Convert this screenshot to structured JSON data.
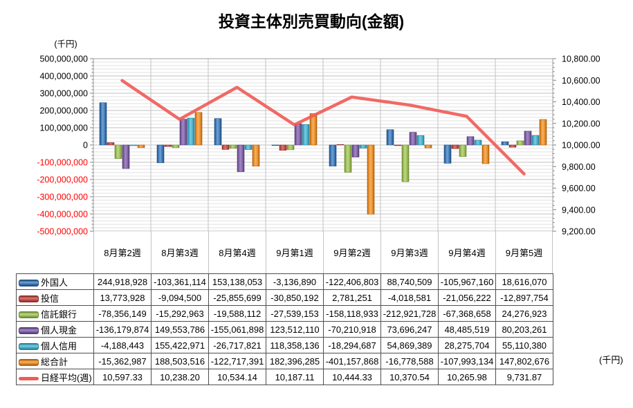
{
  "title": "投資主体別売買動向(金額)",
  "units": {
    "left_top": "(千円)",
    "right_bottom": "(千円)"
  },
  "chart_data": {
    "type": "bar+line-combo",
    "categories": [
      "8月第2週",
      "8月第3週",
      "8月第4週",
      "9月第1週",
      "9月第2週",
      "9月第3週",
      "9月第4週",
      "9月第5週"
    ],
    "series": [
      {
        "key": "foreigners",
        "name": "外国人",
        "type": "bar",
        "color": "#3C73B0",
        "light": "#6FA3D8",
        "dark": "#1E4E7E",
        "values": [
          244918928,
          -103361114,
          153138053,
          -3136890,
          -122406803,
          88740509,
          -105967160,
          18616070
        ]
      },
      {
        "key": "investment-trusts",
        "name": "投信",
        "type": "bar",
        "color": "#BE4B48",
        "light": "#DC7370",
        "dark": "#8A2E2C",
        "values": [
          13773928,
          -9094500,
          -25855699,
          -30850192,
          2781251,
          -4018581,
          -21056222,
          -12897754
        ]
      },
      {
        "key": "trust-banks",
        "name": "信託銀行",
        "type": "bar",
        "color": "#98B954",
        "light": "#C0D784",
        "dark": "#6B8A33",
        "values": [
          -78356149,
          -15292963,
          -19588112,
          -27539153,
          -158118933,
          -212921728,
          -67368658,
          24276923
        ]
      },
      {
        "key": "individual-cash",
        "name": "個人現金",
        "type": "bar",
        "color": "#7C60A0",
        "light": "#A488C8",
        "dark": "#543C75",
        "values": [
          -136179874,
          149553786,
          -155061898,
          123512110,
          -70210918,
          73696247,
          48485519,
          80203261
        ]
      },
      {
        "key": "individual-margin",
        "name": "個人信用",
        "type": "bar",
        "color": "#45AAC5",
        "light": "#76CEE4",
        "dark": "#2B7F96",
        "values": [
          -4188443,
          155422971,
          -26717821,
          118358136,
          -18294687,
          54869389,
          28275704,
          55110380
        ]
      },
      {
        "key": "grand-total",
        "name": "総合計",
        "type": "bar",
        "color": "#E78B28",
        "light": "#F7B160",
        "dark": "#AC5E08",
        "values": [
          -15362987,
          188503516,
          -122717391,
          182396285,
          -401157868,
          -16778588,
          -107993134,
          147802676
        ]
      },
      {
        "key": "nikkei-weekly",
        "name": "日経平均(週)",
        "type": "line",
        "color": "#F15A55",
        "light": "#F15A55",
        "dark": "#F15A55",
        "values": [
          10597.33,
          10238.2,
          10534.14,
          10187.11,
          10444.33,
          10370.54,
          10265.98,
          9731.87
        ]
      }
    ],
    "left_axis": {
      "min": -500000000,
      "max": 500000000,
      "major": 100000000,
      "minor": 20000000,
      "unit": "(千円)",
      "negative_label_color": "#FF0000"
    },
    "right_axis": {
      "min": 9200,
      "max": 10800,
      "major": 200,
      "minor": 40,
      "decimals": 2
    },
    "grid": true,
    "legend_position": "table-first-column"
  }
}
